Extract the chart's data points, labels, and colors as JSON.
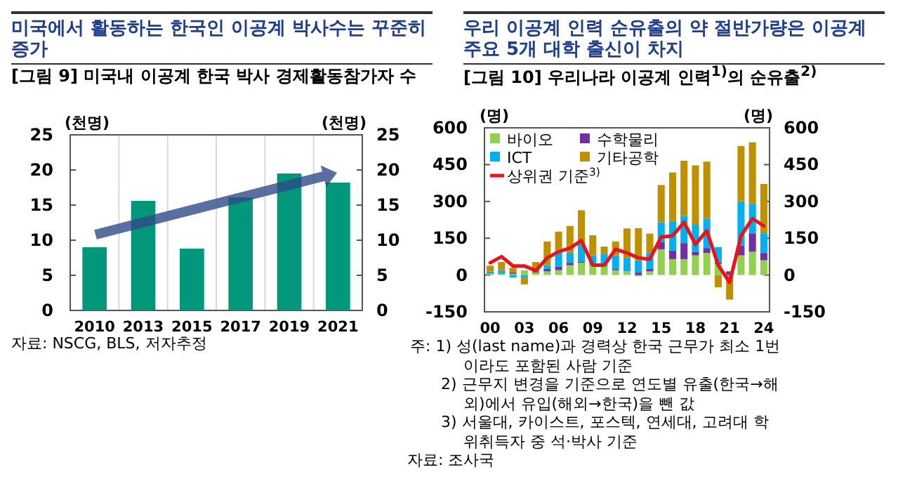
{
  "chart_data": [
    {
      "type": "bar",
      "title": "미국에서 활동하는 한국인 이공계 박사수는 꾸준히 증가",
      "subtitle": "[그림 9] 미국내 이공계 한국 박사 경제활동참가자 수",
      "ylabel": "(천명)",
      "y2label": "(천명)",
      "categories": [
        "2010",
        "2013",
        "2015",
        "2017",
        "2019",
        "2021"
      ],
      "series": [
        {
          "color": "#00977a",
          "values": [
            9.0,
            15.6,
            8.8,
            16.1,
            19.5,
            18.2
          ]
        }
      ],
      "ylim": [
        0,
        25
      ],
      "yticks": [
        0,
        5,
        10,
        15,
        20,
        25
      ],
      "y2lim": [
        0,
        25
      ],
      "y2ticks": [
        0,
        5,
        10,
        15,
        20,
        25
      ],
      "grid": "x",
      "legend": false,
      "annotations": [
        "자료: NSCG, BLS, 저자추정"
      ]
    },
    {
      "type": "bar",
      "title": "우리 이공계 인력 순유출의 약 절반가량은 이공계 주요 5개 대학 출신이 차지",
      "subtitle": "[그림 10] 우리나라 이공계 인력$^{1)}$의 순유출$^{2)}$",
      "ylabel": "(명)",
      "y2label": "(명)",
      "categories": [
        "00",
        null,
        null,
        "03",
        null,
        null,
        "06",
        null,
        null,
        "09",
        null,
        null,
        "12",
        null,
        null,
        "15",
        null,
        null,
        "18",
        null,
        null,
        "21",
        null,
        null,
        "24"
      ],
      "stacked": true,
      "series": [
        {
          "name": "바이오",
          "color": "#92d050",
          "values": [
            5,
            5,
            5,
            19,
            10,
            15,
            20,
            40,
            50,
            40,
            35,
            20,
            15,
            -5,
            15,
            105,
            65,
            65,
            80,
            90,
            45,
            null,
            80,
            95,
            60
          ]
        },
        {
          "name": "수학물리",
          "color": "#7030a0",
          "values": [
            0,
            0,
            5,
            0,
            3,
            10,
            15,
            10,
            5,
            null,
            0,
            5,
            0,
            10,
            10,
            30,
            35,
            65,
            15,
            20,
            5,
            15,
            40,
            75,
            30
          ]
        },
        {
          "name": "ICT",
          "color": "#00b0f0",
          "values": [
            10,
            15,
            -10,
            -10,
            null,
            15,
            60,
            40,
            70,
            40,
            50,
            55,
            55,
            50,
            65,
            80,
            120,
            110,
            110,
            120,
            64,
            0,
            180,
            120,
            80
          ]
        },
        {
          "name": "기타공학",
          "color": "#bf9000",
          "values": [
            23,
            33,
            20,
            -28,
            40,
            97,
            82,
            110,
            139,
            82,
            31,
            57,
            120,
            131,
            79,
            152,
            198,
            226,
            242,
            232,
            -50,
            -100,
            226,
            251,
            201
          ]
        },
        {
          "name": "상위권 기준$^{3)}$",
          "type": "line",
          "color": "#e8141b",
          "values": [
            50,
            75,
            37,
            37,
            18,
            70,
            95,
            110,
            140,
            40,
            40,
            105,
            90,
            70,
            65,
            155,
            160,
            215,
            125,
            180,
            40,
            -30,
            160,
            230,
            200
          ]
        }
      ],
      "ylim": [
        -150,
        600
      ],
      "yticks": [
        -150,
        0,
        150,
        300,
        450,
        600
      ],
      "y2lim": [
        -150,
        600
      ],
      "y2ticks": [
        -150,
        0,
        150,
        300,
        450,
        600
      ],
      "legend": "top left",
      "line_style": "solid",
      "annotations": [
        "주: 1) 성(last name)과 경력상 한국 근무가 최소 1번이라도 포함된 사람 기준",
        "2) 근무지 변경을 기준으로 연도별 유출(한국→해외)에서 유입(해외→한국)을 뺀 값",
        "3) 서울대, 카이스트, 포스텍, 연세대, 고려대 학위취득자 중 석·박사 기준",
        "자료: 조사국"
      ]
    }
  ]
}
